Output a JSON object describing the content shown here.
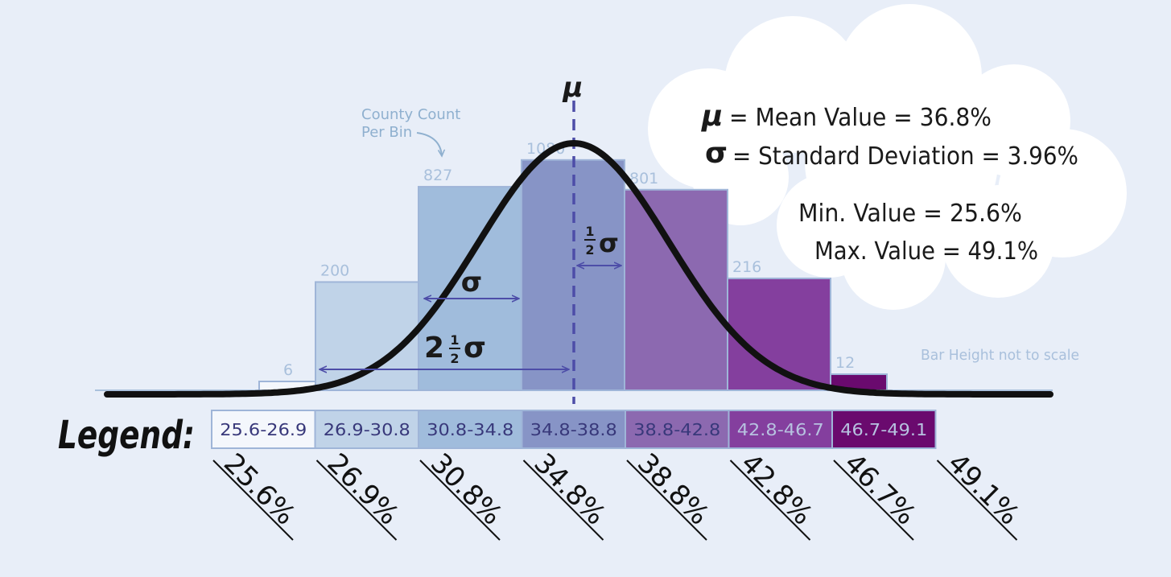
{
  "chart_data": {
    "type": "bar",
    "categories": [
      "25.6-26.9",
      "26.9-30.8",
      "30.8-34.8",
      "34.8-38.8",
      "38.8-42.8",
      "42.8-46.7",
      "46.7-49.1"
    ],
    "values": [
      6,
      200,
      827,
      1080,
      801,
      216,
      12
    ],
    "bin_edges": [
      "25.6%",
      "26.9%",
      "30.8%",
      "34.8%",
      "38.8%",
      "42.8%",
      "46.7%",
      "49.1%"
    ],
    "colors": [
      "#f4f7fc",
      "#c0d3e8",
      "#a0bcdc",
      "#8794c6",
      "#8c69b0",
      "#843f9e",
      "#6a0a6e"
    ],
    "legend_text_colors": [
      "#38387a",
      "#38387a",
      "#38387a",
      "#38387a",
      "#38387a",
      "#b7c2e0",
      "#b7c2e0"
    ],
    "normal_curve": {
      "mean": 36.8,
      "sd": 3.96
    },
    "bar_height_note": "Bar Height not to scale",
    "count_note": [
      "County Count",
      "Per Bin"
    ],
    "legend_title": "Legend:",
    "mu_label": "μ",
    "annotations": {
      "sigma": "σ",
      "two_half_sigma_prefix": "2",
      "half_num": "1",
      "half_den": "2",
      "half_sigma_suffix": "σ"
    },
    "stats": {
      "mean_symbol": "μ",
      "mean_text": "= Mean Value = 36.8%",
      "sd_symbol": "σ",
      "sd_text": "= Standard Deviation = 3.96%",
      "min_text": "Min. Value = 25.6%",
      "max_text": "Max. Value = 49.1%"
    }
  }
}
